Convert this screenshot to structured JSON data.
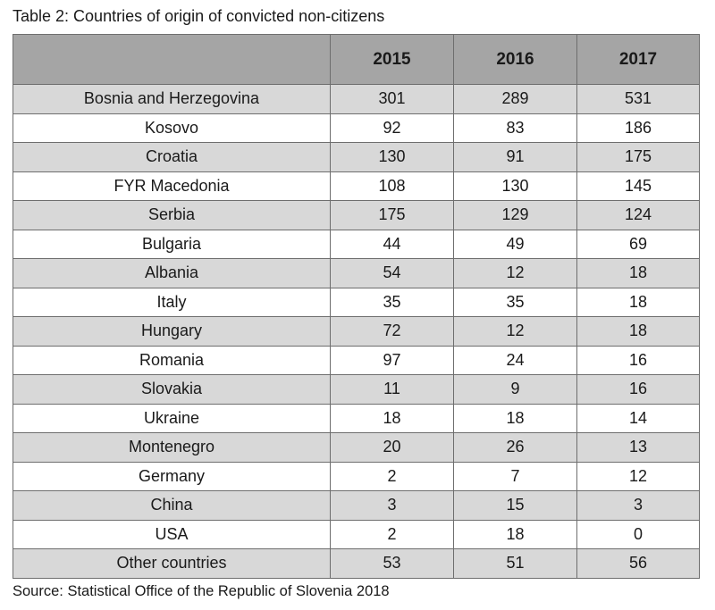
{
  "caption": "Table 2: Countries of origin of convicted non-citizens",
  "columns": [
    "",
    "2015",
    "2016",
    "2017"
  ],
  "rows": [
    {
      "country": "Bosnia and Herzegovina",
      "y2015": "301",
      "y2016": "289",
      "y2017": "531"
    },
    {
      "country": "Kosovo",
      "y2015": "92",
      "y2016": "83",
      "y2017": "186"
    },
    {
      "country": "Croatia",
      "y2015": "130",
      "y2016": "91",
      "y2017": "175"
    },
    {
      "country": "FYR Macedonia",
      "y2015": "108",
      "y2016": "130",
      "y2017": "145"
    },
    {
      "country": "Serbia",
      "y2015": "175",
      "y2016": "129",
      "y2017": "124"
    },
    {
      "country": "Bulgaria",
      "y2015": "44",
      "y2016": "49",
      "y2017": "69"
    },
    {
      "country": "Albania",
      "y2015": "54",
      "y2016": "12",
      "y2017": "18"
    },
    {
      "country": "Italy",
      "y2015": "35",
      "y2016": "35",
      "y2017": "18"
    },
    {
      "country": "Hungary",
      "y2015": "72",
      "y2016": "12",
      "y2017": "18"
    },
    {
      "country": "Romania",
      "y2015": "97",
      "y2016": "24",
      "y2017": "16"
    },
    {
      "country": "Slovakia",
      "y2015": "11",
      "y2016": "9",
      "y2017": "16"
    },
    {
      "country": "Ukraine",
      "y2015": "18",
      "y2016": "18",
      "y2017": "14"
    },
    {
      "country": "Montenegro",
      "y2015": "20",
      "y2016": "26",
      "y2017": "13"
    },
    {
      "country": "Germany",
      "y2015": "2",
      "y2016": "7",
      "y2017": "12"
    },
    {
      "country": "China",
      "y2015": "3",
      "y2016": "15",
      "y2017": "3"
    },
    {
      "country": "USA",
      "y2015": "2",
      "y2016": "18",
      "y2017": "0"
    },
    {
      "country": "Other countries",
      "y2015": "53",
      "y2016": "51",
      "y2017": "56"
    }
  ],
  "source": "Source: Statistical Office of the Republic of Slovenia 2018",
  "colors": {
    "header_fill": "#a5a5a5",
    "shaded_row_fill": "#d8d8d8",
    "plain_row_fill": "#ffffff",
    "grid_line": "#6e6e6e"
  }
}
